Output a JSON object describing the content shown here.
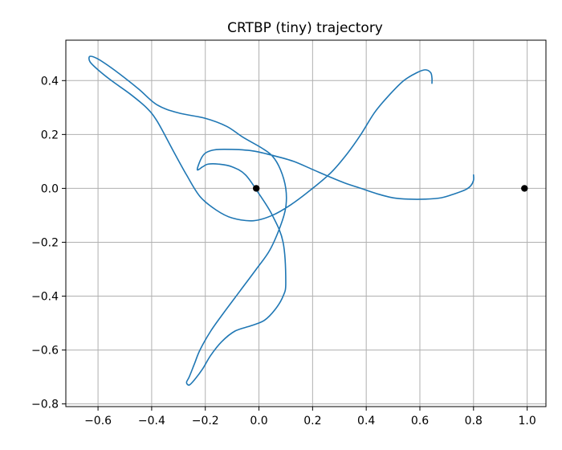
{
  "chart_data": {
    "type": "line",
    "title": "CRTBP (tiny) trajectory",
    "xlabel": "",
    "ylabel": "",
    "xlim": [
      -0.72,
      1.07
    ],
    "ylim": [
      -0.81,
      0.55
    ],
    "x_ticks": [
      -0.6,
      -0.4,
      -0.2,
      0.0,
      0.2,
      0.4,
      0.6,
      0.8,
      1.0
    ],
    "x_tick_labels": [
      "−0.6",
      "−0.4",
      "−0.2",
      "0.0",
      "0.2",
      "0.4",
      "0.6",
      "0.8",
      "1.0"
    ],
    "y_ticks": [
      -0.8,
      -0.6,
      -0.4,
      -0.2,
      0.0,
      0.2,
      0.4
    ],
    "y_tick_labels": [
      "−0.8",
      "−0.6",
      "−0.4",
      "−0.2",
      "0.0",
      "0.2",
      "0.4"
    ],
    "grid": true,
    "series_color": "#1f77b4",
    "marker_color": "#000000",
    "trajectory": {
      "x": [
        0.645,
        0.645,
        0.64,
        0.62,
        0.59,
        0.54,
        0.48,
        0.43,
        0.38,
        0.33,
        0.27,
        0.2,
        0.12,
        0.05,
        -0.02,
        -0.1,
        -0.16,
        -0.22,
        -0.27,
        -0.32,
        -0.38,
        -0.42,
        -0.48,
        -0.55,
        -0.6,
        -0.63,
        -0.63,
        -0.6,
        -0.54,
        -0.45,
        -0.38,
        -0.3,
        -0.2,
        -0.12,
        -0.06,
        0.01,
        0.05,
        0.08,
        0.1,
        0.1,
        0.08,
        0.04,
        -0.01,
        -0.07,
        -0.13,
        -0.18,
        -0.22,
        -0.24,
        -0.26,
        -0.27,
        -0.26,
        -0.24,
        -0.21,
        -0.18,
        -0.14,
        -0.09,
        -0.03,
        0.02,
        0.06,
        0.09,
        0.1,
        0.09,
        0.05,
        0.0,
        -0.05,
        -0.1,
        -0.15,
        -0.19,
        -0.21,
        -0.23,
        -0.21,
        -0.18,
        -0.13,
        -0.03,
        0.06,
        0.13,
        0.2,
        0.27,
        0.32,
        0.38,
        0.44,
        0.5,
        0.56,
        0.62,
        0.68,
        0.73,
        0.77,
        0.79,
        0.8,
        0.8
      ],
      "y": [
        0.39,
        0.41,
        0.43,
        0.44,
        0.43,
        0.4,
        0.34,
        0.28,
        0.2,
        0.13,
        0.06,
        0.0,
        -0.06,
        -0.1,
        -0.12,
        -0.11,
        -0.08,
        -0.03,
        0.05,
        0.14,
        0.25,
        0.3,
        0.35,
        0.4,
        0.44,
        0.47,
        0.49,
        0.48,
        0.44,
        0.37,
        0.31,
        0.28,
        0.26,
        0.23,
        0.19,
        0.15,
        0.12,
        0.07,
        0.0,
        -0.07,
        -0.14,
        -0.23,
        -0.3,
        -0.38,
        -0.46,
        -0.53,
        -0.6,
        -0.65,
        -0.7,
        -0.72,
        -0.73,
        -0.71,
        -0.67,
        -0.62,
        -0.57,
        -0.53,
        -0.51,
        -0.49,
        -0.45,
        -0.4,
        -0.35,
        -0.2,
        -0.1,
        -0.02,
        0.05,
        0.08,
        0.09,
        0.09,
        0.08,
        0.07,
        0.12,
        0.14,
        0.145,
        0.14,
        0.12,
        0.1,
        0.07,
        0.04,
        0.02,
        0.0,
        -0.02,
        -0.035,
        -0.04,
        -0.04,
        -0.035,
        -0.02,
        -0.005,
        0.01,
        0.03,
        0.05
      ]
    },
    "points": [
      {
        "x": -0.01,
        "y": 0.0
      },
      {
        "x": 0.99,
        "y": 0.0
      }
    ]
  }
}
